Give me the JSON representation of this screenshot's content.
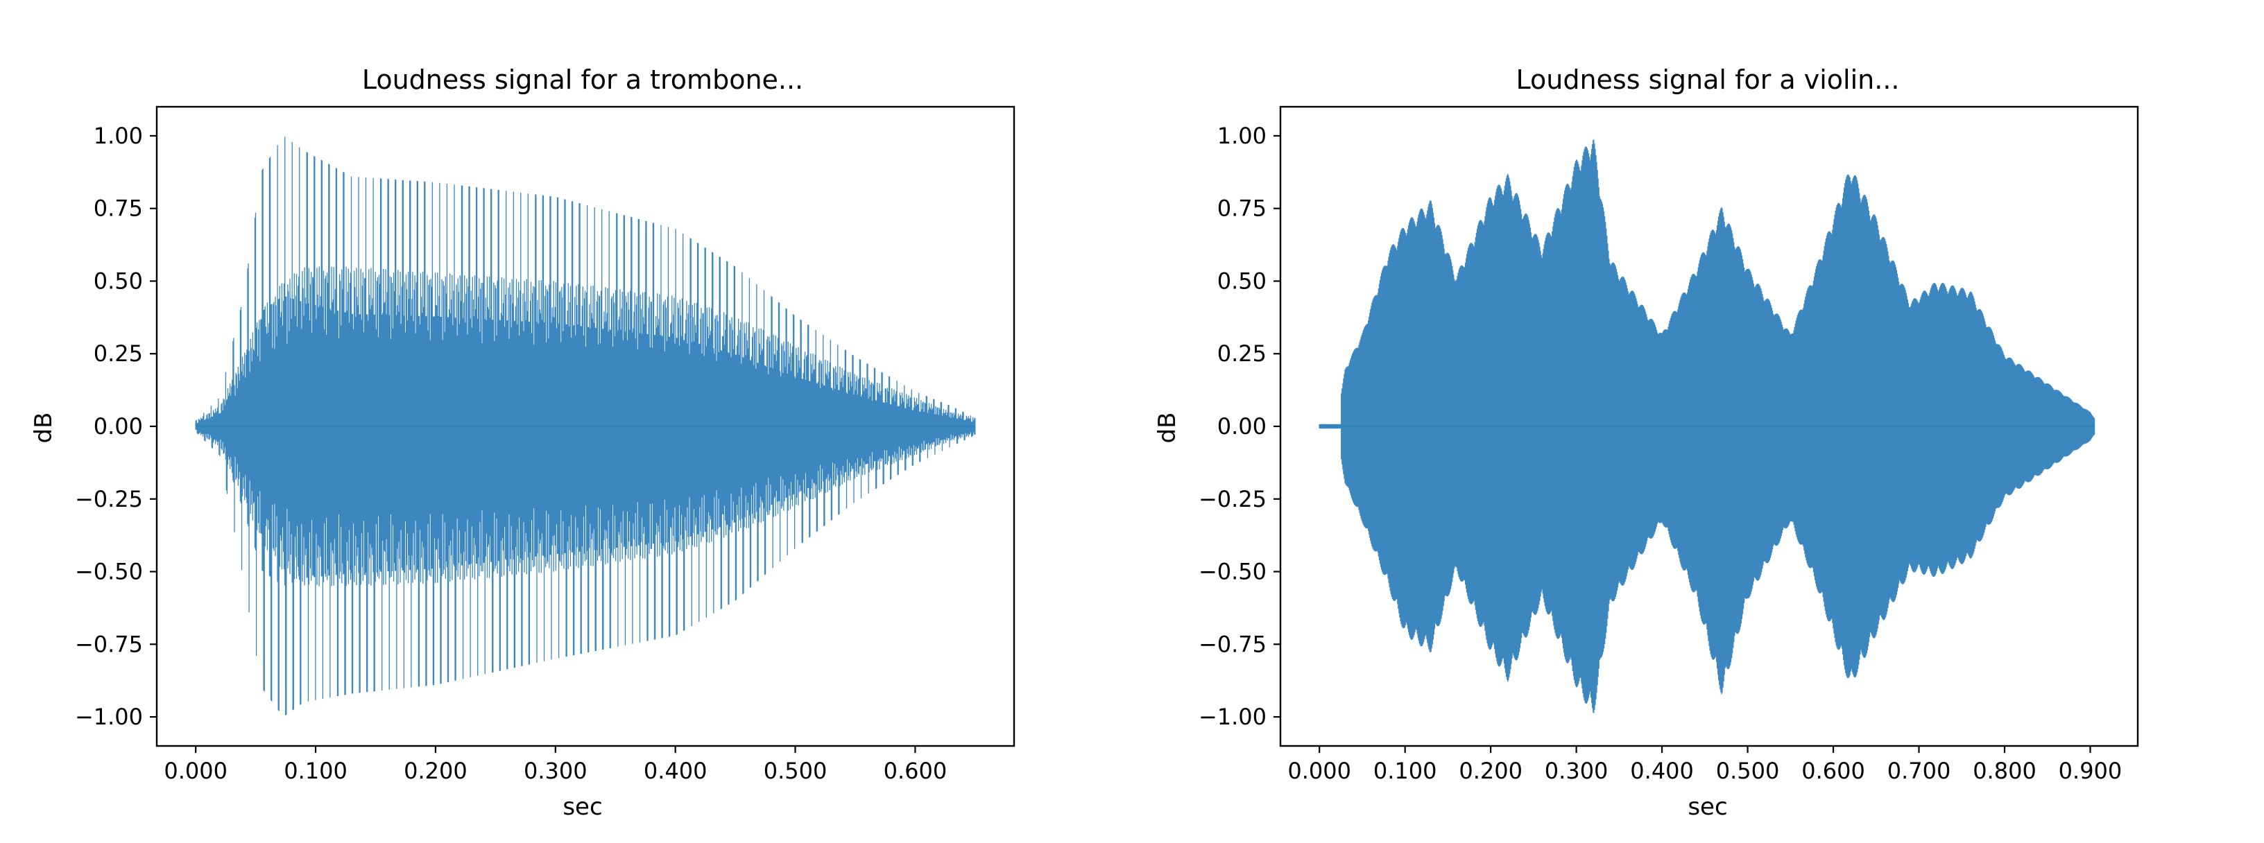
{
  "chart_data": [
    {
      "type": "line",
      "title": "Loudness signal for a trombone...",
      "xlabel": "sec",
      "ylabel": "dB",
      "xlim": [
        -0.0325,
        0.6825
      ],
      "ylim": [
        -1.1,
        1.1
      ],
      "xticks": [
        0.0,
        0.1,
        0.2,
        0.3,
        0.4,
        0.5,
        0.6
      ],
      "xtick_labels": [
        "0.000",
        "0.100",
        "0.200",
        "0.300",
        "0.400",
        "0.500",
        "0.600"
      ],
      "yticks": [
        1.0,
        0.75,
        0.5,
        0.25,
        0.0,
        -0.25,
        -0.5,
        -0.75,
        -1.0
      ],
      "ytick_labels": [
        "1.00",
        "0.75",
        "0.50",
        "0.25",
        "0.00",
        "−0.25",
        "−0.50",
        "−0.75",
        "−1.00"
      ],
      "grid": false,
      "series": [
        {
          "color": "#3181bd",
          "duration": 0.65,
          "pulse_period": 0.00615,
          "envelope": {
            "t": [
              0.0,
              0.02,
              0.04,
              0.055,
              0.073,
              0.09,
              0.13,
              0.2,
              0.3,
              0.4,
              0.45,
              0.5,
              0.55,
              0.6,
              0.63,
              0.65
            ],
            "upper": [
              0.02,
              0.1,
              0.45,
              0.88,
              1.0,
              0.95,
              0.86,
              0.84,
              0.79,
              0.68,
              0.55,
              0.38,
              0.24,
              0.12,
              0.07,
              0.03
            ],
            "lower": [
              -0.02,
              -0.1,
              -0.53,
              -0.9,
              -1.0,
              -0.95,
              -0.92,
              -0.89,
              -0.8,
              -0.72,
              -0.6,
              -0.42,
              -0.26,
              -0.13,
              -0.07,
              -0.03
            ],
            "mid_upper": [
              0.02,
              0.07,
              0.25,
              0.4,
              0.5,
              0.55,
              0.55,
              0.53,
              0.5,
              0.45,
              0.38,
              0.28,
              0.18,
              0.1,
              0.05,
              0.03
            ],
            "mid_lower": [
              -0.02,
              -0.07,
              -0.25,
              -0.4,
              -0.5,
              -0.55,
              -0.55,
              -0.54,
              -0.5,
              -0.44,
              -0.37,
              -0.28,
              -0.18,
              -0.1,
              -0.05,
              -0.03
            ]
          }
        }
      ]
    },
    {
      "type": "line",
      "title": "Loudness signal for a violin...",
      "xlabel": "sec",
      "ylabel": "dB",
      "xlim": [
        -0.0455,
        0.9555
      ],
      "ylim": [
        -1.1,
        1.1
      ],
      "xticks": [
        0.0,
        0.1,
        0.2,
        0.3,
        0.4,
        0.5,
        0.6,
        0.7,
        0.8,
        0.9
      ],
      "xtick_labels": [
        "0.000",
        "0.100",
        "0.200",
        "0.300",
        "0.400",
        "0.500",
        "0.600",
        "0.700",
        "0.800",
        "0.900"
      ],
      "yticks": [
        1.0,
        0.75,
        0.5,
        0.25,
        0.0,
        -0.25,
        -0.5,
        -0.75,
        -1.0
      ],
      "ytick_labels": [
        "1.00",
        "0.75",
        "0.50",
        "0.25",
        "0.00",
        "−0.25",
        "−0.50",
        "−0.75",
        "−1.00"
      ],
      "grid": false,
      "series": [
        {
          "color": "#3181bd",
          "duration": 0.905,
          "start": 0.025,
          "envelope": {
            "t": [
              0.0,
              0.02,
              0.03,
              0.05,
              0.08,
              0.1,
              0.13,
              0.16,
              0.2,
              0.22,
              0.26,
              0.3,
              0.32,
              0.34,
              0.4,
              0.44,
              0.47,
              0.5,
              0.55,
              0.58,
              0.62,
              0.65,
              0.69,
              0.72,
              0.76,
              0.8,
              0.85,
              0.9,
              0.905
            ],
            "upper": [
              0.01,
              0.01,
              0.2,
              0.32,
              0.6,
              0.7,
              0.78,
              0.52,
              0.8,
              0.87,
              0.62,
              0.92,
              1.0,
              0.58,
              0.32,
              0.55,
              0.76,
              0.55,
              0.32,
              0.55,
              0.9,
              0.72,
              0.43,
              0.5,
              0.47,
              0.25,
              0.15,
              0.05,
              0.03
            ],
            "lower": [
              -0.01,
              -0.01,
              -0.2,
              -0.33,
              -0.55,
              -0.72,
              -0.78,
              -0.5,
              -0.78,
              -0.88,
              -0.6,
              -0.9,
              -1.0,
              -0.62,
              -0.33,
              -0.6,
              -0.93,
              -0.6,
              -0.33,
              -0.55,
              -0.9,
              -0.72,
              -0.5,
              -0.52,
              -0.46,
              -0.25,
              -0.15,
              -0.05,
              -0.03
            ]
          }
        }
      ]
    }
  ]
}
